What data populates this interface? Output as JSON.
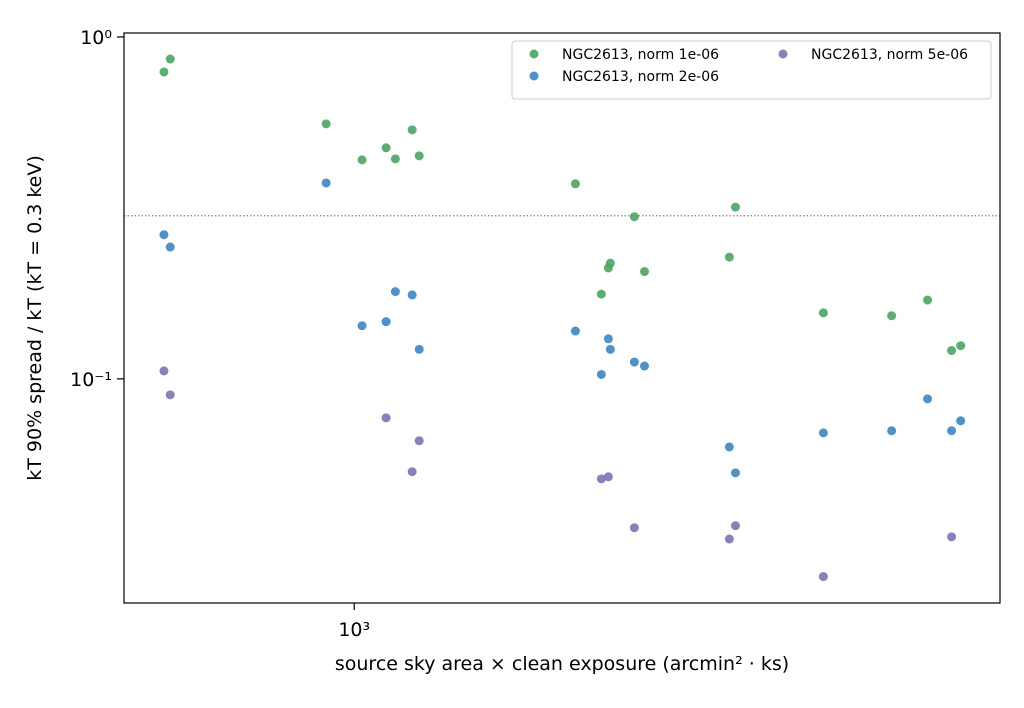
{
  "chart_data": {
    "type": "scatter",
    "xlabel": "source sky area × clean exposure  (arcmin² · ks)",
    "ylabel": "kT 90% spread / kT (kT = 0.3 keV)",
    "xscale": "log",
    "yscale": "log",
    "xlim": [
      483,
      7700
    ],
    "ylim": [
      0.0221,
      1.027
    ],
    "xticks": [
      {
        "value": 1000,
        "label": "10³"
      }
    ],
    "yticks": [
      {
        "value": 0.1,
        "label": "10⁻¹"
      },
      {
        "value": 1,
        "label": "10⁰"
      }
    ],
    "hline": 0.3,
    "legend": "upper right",
    "series": [
      {
        "name": "NGC2613, norm 1e-06",
        "color": "#4aa564",
        "x": [
          548,
          559,
          915,
          1025,
          1106,
          1139,
          1201,
          1228,
          2012,
          2184,
          2233,
          2247,
          2424,
          2503,
          3273,
          3337,
          4406,
          5467,
          6124,
          6607,
          6800
        ],
        "values": [
          0.79,
          0.862,
          0.557,
          0.437,
          0.474,
          0.44,
          0.535,
          0.449,
          0.372,
          0.177,
          0.211,
          0.218,
          0.298,
          0.206,
          0.227,
          0.318,
          0.156,
          0.153,
          0.17,
          0.121,
          0.125
        ]
      },
      {
        "name": "NGC2613, norm 2e-06",
        "color": "#3a87c4",
        "x": [
          548,
          559,
          915,
          1025,
          1106,
          1139,
          1201,
          1228,
          2012,
          2184,
          2233,
          2247,
          2424,
          2503,
          3273,
          3337,
          4406,
          5467,
          6124,
          6607,
          6800
        ],
        "values": [
          0.264,
          0.243,
          0.374,
          0.143,
          0.147,
          0.18,
          0.176,
          0.122,
          0.138,
          0.103,
          0.131,
          0.122,
          0.112,
          0.109,
          0.0632,
          0.0531,
          0.0695,
          0.0705,
          0.0874,
          0.0705,
          0.0754
        ]
      },
      {
        "name": "NGC2613, norm 5e-06",
        "color": "#8172b2",
        "x": [
          548,
          559,
          1106,
          1228,
          1201,
          2184,
          2233,
          2424,
          3273,
          3337,
          4406,
          6607
        ],
        "values": [
          0.1055,
          0.0898,
          0.0769,
          0.0659,
          0.0535,
          0.051,
          0.0517,
          0.0367,
          0.034,
          0.0372,
          0.0264,
          0.0345
        ]
      }
    ]
  }
}
